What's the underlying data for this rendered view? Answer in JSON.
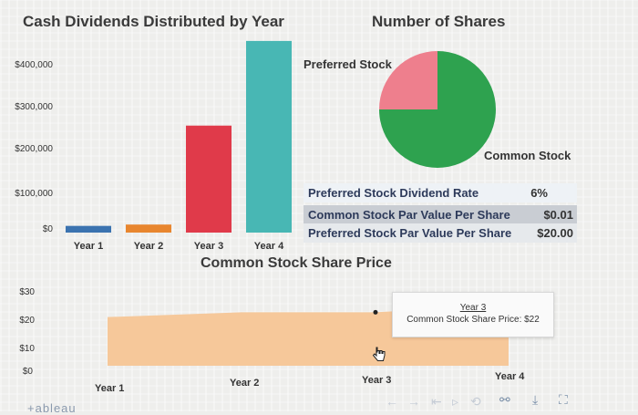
{
  "colors": {
    "year1": "#3b73b0",
    "year2": "#e8862f",
    "year3": "#e03a4a",
    "year4": "#48b7b4",
    "pie_preferred": "#ee7f8d",
    "pie_common": "#2ea24f",
    "area_fill": "#f6c89a"
  },
  "dividends": {
    "title": "Cash Dividends Distributed by Year",
    "yticks": [
      "$400,000",
      "$300,000",
      "$200,000",
      "$100,000",
      "$0"
    ]
  },
  "shares": {
    "title": "Number of Shares",
    "preferred_label": "Preferred Stock",
    "common_label": "Common Stock"
  },
  "info_table": {
    "rows": [
      {
        "label": "Preferred Stock Dividend Rate",
        "value": "6%"
      },
      {
        "label": "Common Stock Par Value Per Share",
        "value": "$0.01"
      },
      {
        "label": "Preferred Stock Par Value Per Share",
        "value": "$20.00"
      }
    ]
  },
  "share_price": {
    "title": "Common Stock Share Price",
    "yticks": [
      "$30",
      "$20",
      "$10",
      "$0"
    ],
    "xticks": [
      "Year 1",
      "Year 2",
      "Year 3",
      "Year 4"
    ]
  },
  "tooltip": {
    "year": "Year 3",
    "text": "Common Stock Share Price: $22"
  },
  "footer": {
    "logo_text": "+ableau"
  },
  "chart_data": [
    {
      "type": "bar",
      "title": "Cash Dividends Distributed by Year",
      "categories": [
        "Year 1",
        "Year 2",
        "Year 3",
        "Year 4"
      ],
      "values": [
        15000,
        18000,
        240000,
        430000
      ],
      "ylim": [
        0,
        440000
      ]
    },
    {
      "type": "pie",
      "title": "Number of Shares",
      "labels": [
        "Preferred Stock",
        "Common Stock"
      ],
      "values": [
        25,
        75
      ]
    },
    {
      "type": "area",
      "title": "Common Stock Share Price",
      "categories": [
        "Year 1",
        "Year 2",
        "Year 3",
        "Year 4"
      ],
      "values": [
        20,
        22,
        22,
        25
      ],
      "ylim": [
        0,
        30
      ]
    }
  ]
}
